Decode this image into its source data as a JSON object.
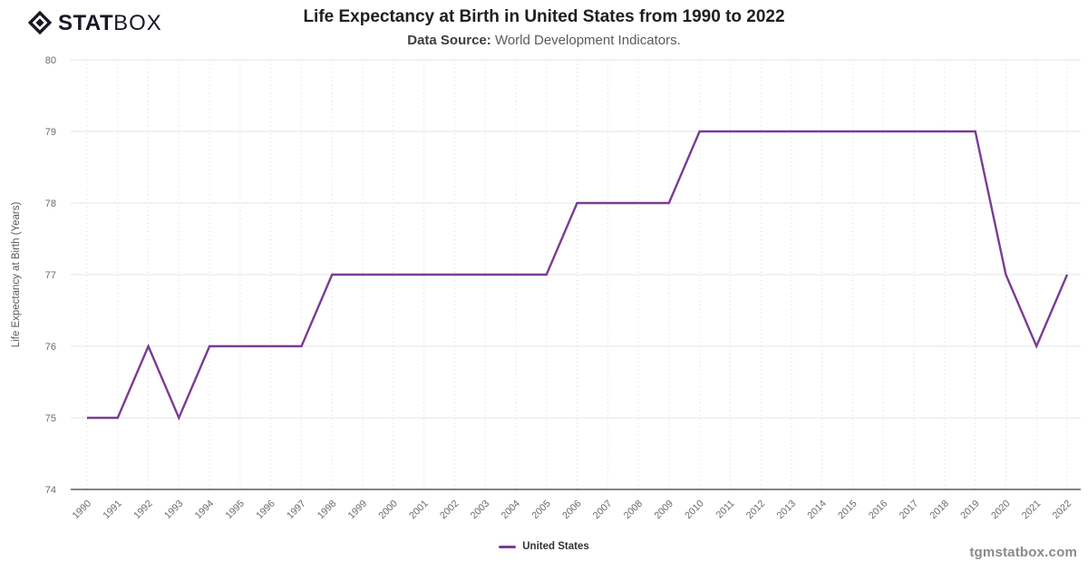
{
  "header": {
    "logo_stat": "STAT",
    "logo_box": "BOX",
    "title": "Life Expectancy at Birth in United States from 1990 to 2022",
    "subtitle_label": "Data Source:",
    "subtitle_text": "World Development Indicators."
  },
  "chart_data": {
    "type": "line",
    "title": "Life Expectancy at Birth in United States from 1990 to 2022",
    "xlabel": "",
    "ylabel": "Life Expectancy at Birth (Years)",
    "ylim": [
      74,
      80
    ],
    "yticks": [
      74,
      75,
      76,
      77,
      78,
      79,
      80
    ],
    "x": [
      "1990",
      "1991",
      "1992",
      "1993",
      "1994",
      "1995",
      "1996",
      "1997",
      "1998",
      "1999",
      "2000",
      "2001",
      "2002",
      "2003",
      "2004",
      "2005",
      "2006",
      "2007",
      "2008",
      "2009",
      "2010",
      "2011",
      "2012",
      "2013",
      "2014",
      "2015",
      "2016",
      "2017",
      "2018",
      "2019",
      "2020",
      "2021",
      "2022"
    ],
    "series": [
      {
        "name": "United States",
        "color": "#7A3C94",
        "values": [
          75,
          75,
          76,
          75,
          76,
          76,
          76,
          76,
          77,
          77,
          77,
          77,
          77,
          77,
          77,
          77,
          78,
          78,
          78,
          78,
          79,
          79,
          79,
          79,
          79,
          79,
          79,
          79,
          79,
          79,
          77,
          76,
          77
        ]
      }
    ],
    "grid": {
      "horizontal": "solid",
      "vertical": "dotted"
    },
    "legend_position": "bottom"
  },
  "legend": {
    "items": [
      {
        "label": "United States",
        "color": "#7A3C94"
      }
    ]
  },
  "footer": {
    "watermark": "tgmstatbox.com"
  },
  "colors": {
    "line": "#7A3C94",
    "grid_horizontal": "#e4e4e4",
    "grid_vertical": "#d9d9d9",
    "axis_line": "#3a3a3a",
    "tick_text": "#6b6b6b",
    "axis_title_text": "#595959",
    "title_text": "#1f1f1f",
    "subtitle_text": "#5a5a5a",
    "legend_text": "#333333",
    "watermark_text": "#8a8a8a",
    "logo_text": "#181826"
  }
}
